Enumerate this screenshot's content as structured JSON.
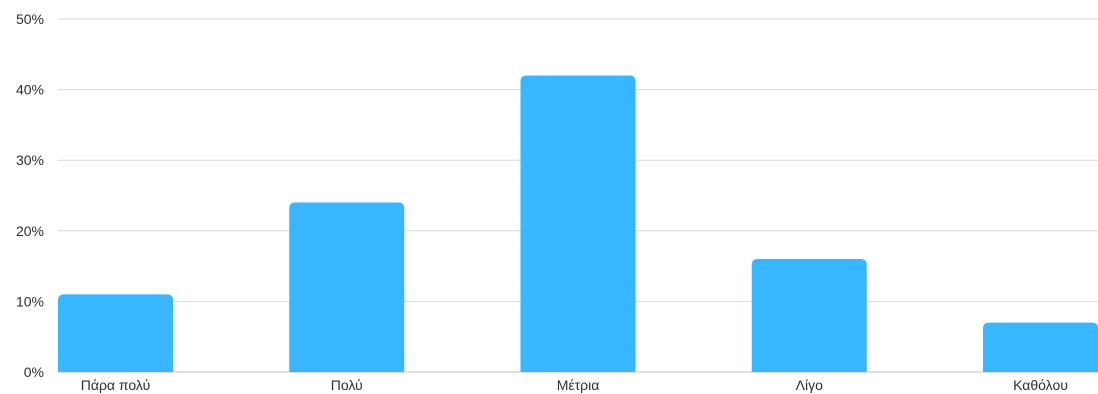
{
  "chart_data": {
    "type": "bar",
    "categories": [
      "Πάρα πολύ",
      "Πολύ",
      "Μέτρια",
      "Λίγο",
      "Καθόλου"
    ],
    "values": [
      11,
      24,
      42,
      16,
      7
    ],
    "ylim": [
      0,
      50
    ],
    "yticks": [
      0,
      10,
      20,
      30,
      40,
      50
    ],
    "ytick_labels": [
      "0%",
      "10%",
      "20%",
      "30%",
      "40%",
      "50%"
    ],
    "title": "",
    "xlabel": "",
    "ylabel": "",
    "grid": true,
    "bar_color": "#38B6FF"
  }
}
